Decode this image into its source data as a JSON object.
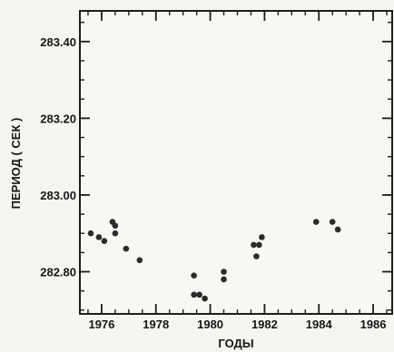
{
  "chart_data": {
    "type": "scatter",
    "title": "",
    "xlabel": "ГОДЫ",
    "ylabel": "ПЕРИОД ( СЕК )",
    "xlim": [
      1975.2,
      1986.7
    ],
    "ylim": [
      282.69,
      283.48
    ],
    "x_ticks": [
      1976,
      1978,
      1980,
      1982,
      1984,
      1986
    ],
    "x_tick_labels": [
      "1976",
      "1978",
      "1980",
      "1982",
      "1984",
      "1986"
    ],
    "y_ticks": [
      282.8,
      283.0,
      283.2,
      283.4
    ],
    "y_tick_labels": [
      "282.80",
      "283.00",
      "283.20",
      "283.40"
    ],
    "x_minor_step": 0.5,
    "y_minor_step": 0.05,
    "grid": false,
    "series": [
      {
        "color": "#2b2b2b",
        "points": [
          {
            "x": 1975.6,
            "y": 282.9
          },
          {
            "x": 1975.9,
            "y": 282.89
          },
          {
            "x": 1976.1,
            "y": 282.88
          },
          {
            "x": 1976.4,
            "y": 282.93
          },
          {
            "x": 1976.5,
            "y": 282.92
          },
          {
            "x": 1976.5,
            "y": 282.9
          },
          {
            "x": 1976.9,
            "y": 282.86
          },
          {
            "x": 1977.4,
            "y": 282.83
          },
          {
            "x": 1979.4,
            "y": 282.79
          },
          {
            "x": 1979.4,
            "y": 282.74
          },
          {
            "x": 1979.6,
            "y": 282.74
          },
          {
            "x": 1979.8,
            "y": 282.73
          },
          {
            "x": 1980.5,
            "y": 282.8
          },
          {
            "x": 1980.5,
            "y": 282.78
          },
          {
            "x": 1981.6,
            "y": 282.87
          },
          {
            "x": 1981.7,
            "y": 282.84
          },
          {
            "x": 1981.8,
            "y": 282.87
          },
          {
            "x": 1981.9,
            "y": 282.89
          },
          {
            "x": 1983.9,
            "y": 282.93
          },
          {
            "x": 1984.5,
            "y": 282.93
          },
          {
            "x": 1984.7,
            "y": 282.91
          }
        ]
      }
    ]
  }
}
